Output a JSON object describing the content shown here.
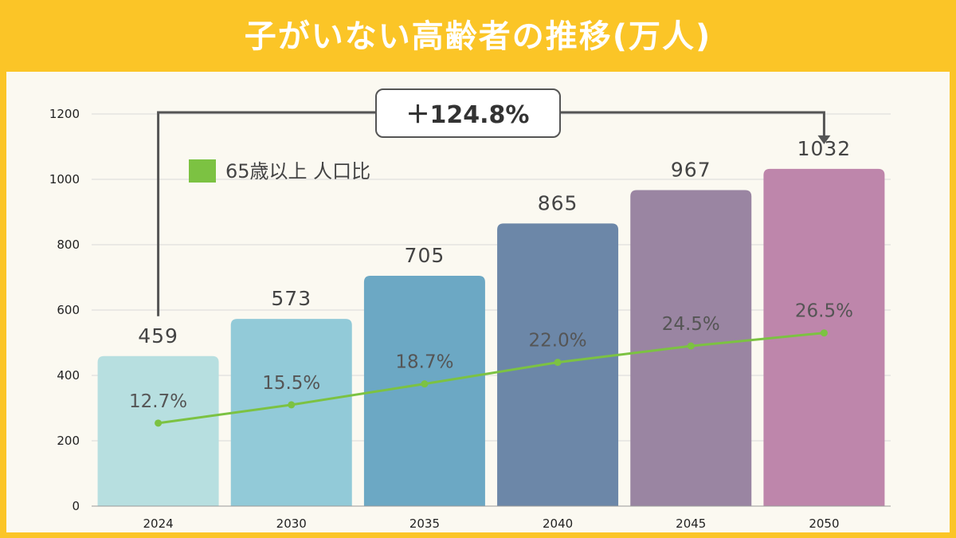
{
  "title": "子がいない高齢者の推移(万人)",
  "legend_label": "65歳以上 人口比",
  "change_badge": "＋124.8%",
  "colors": {
    "background": "#FBC527",
    "panel": "#FBF9F1",
    "line": "#7CC242",
    "bars": [
      "#B7DFE0",
      "#92CAD8",
      "#6CA8C4",
      "#6C87A8",
      "#9A85A2",
      "#BE86AB"
    ]
  },
  "chart_data": {
    "type": "bar",
    "categories": [
      "2024",
      "2030",
      "2035",
      "2040",
      "2045",
      "2050"
    ],
    "values": [
      459,
      573,
      705,
      865,
      967,
      1032
    ],
    "line_series": {
      "name": "65歳以上 人口比",
      "values": [
        12.7,
        15.5,
        18.7,
        22.0,
        24.5,
        26.5
      ],
      "labels": [
        "12.7%",
        "15.5%",
        "18.7%",
        "22.0%",
        "24.5%",
        "26.5%"
      ]
    },
    "yticks": [
      0,
      200,
      400,
      600,
      800,
      1000,
      1200
    ],
    "ylim": [
      0,
      1200
    ],
    "grid": true,
    "legend_position": "top-left"
  }
}
